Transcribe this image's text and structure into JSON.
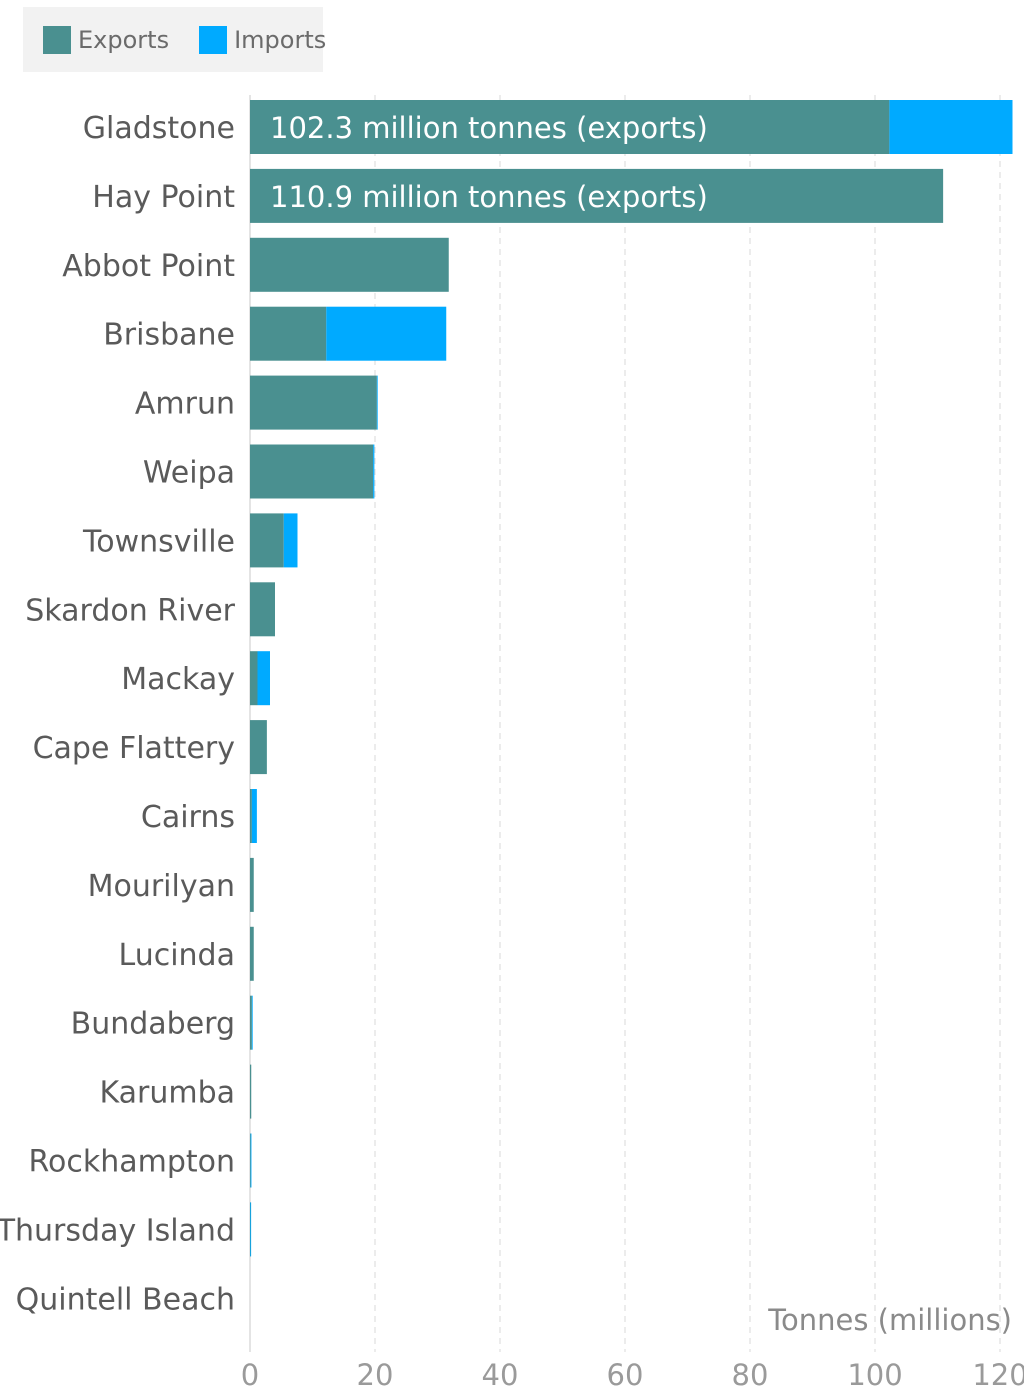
{
  "colors": {
    "exports": "#4a9090",
    "imports": "#00aaff"
  },
  "legend": [
    {
      "label": "Exports",
      "color": "#4a9090"
    },
    {
      "label": "Imports",
      "color": "#00aaff"
    }
  ],
  "chart_data": {
    "type": "bar",
    "orientation": "horizontal",
    "stacked": true,
    "categories": [
      "Gladstone",
      "Hay Point",
      "Abbot Point",
      "Brisbane",
      "Amrun",
      "Weipa",
      "Townsville",
      "Skardon River",
      "Mackay",
      "Cape Flattery",
      "Cairns",
      "Mourilyan",
      "Lucinda",
      "Bundaberg",
      "Karumba",
      "Rockhampton",
      "Thursday Island",
      "Quintell Beach"
    ],
    "series": [
      {
        "name": "Exports",
        "color": "#4a9090",
        "values": [
          102.3,
          110.9,
          31.8,
          12.2,
          20.3,
          19.7,
          5.4,
          4.0,
          1.2,
          2.7,
          0.3,
          0.6,
          0.6,
          0.3,
          0.2,
          0.1,
          0.05,
          0.0
        ]
      },
      {
        "name": "Imports",
        "color": "#00aaff",
        "values": [
          19.7,
          0.0,
          0.0,
          19.2,
          0.1,
          0.2,
          2.2,
          0.0,
          2.0,
          0.0,
          0.8,
          0.0,
          0.0,
          0.05,
          0.0,
          0.1,
          0.05,
          0.0
        ]
      }
    ],
    "bar_labels": [
      {
        "index": 0,
        "text": "102.3 million tonnes (exports)"
      },
      {
        "index": 1,
        "text": "110.9 million tonnes (exports)"
      }
    ],
    "xlabel": "Tonnes (millions)",
    "xlim": [
      0,
      122
    ],
    "xticks": [
      0,
      20,
      40,
      60,
      80,
      100,
      120
    ],
    "grid": true,
    "legend_position": "top-left"
  }
}
